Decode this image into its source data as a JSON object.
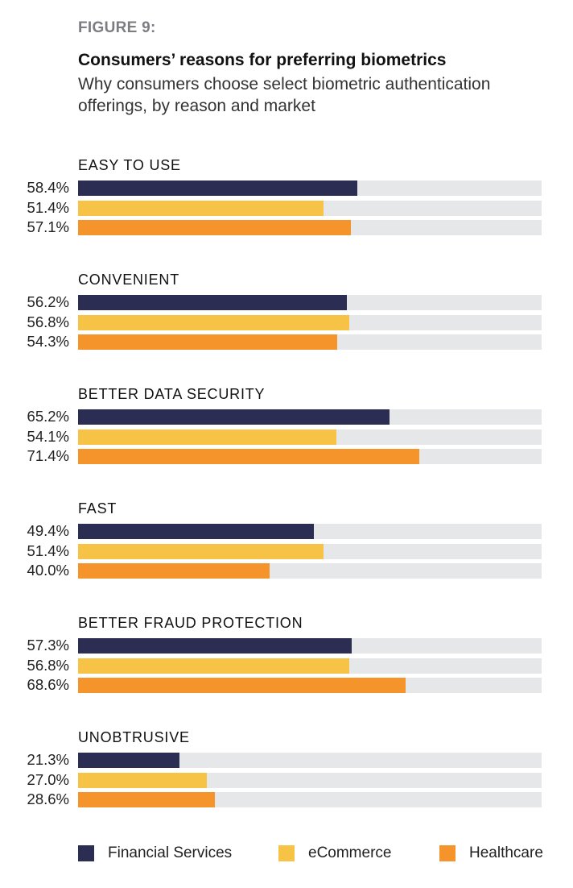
{
  "figure_label": "FIGURE 9:",
  "chart_data": {
    "type": "bar",
    "orientation": "horizontal",
    "title": "Consumers’ reasons for preferring biometrics",
    "subtitle": "Why consumers choose select biometric authentication offerings, by reason and market",
    "categories": [
      "EASY TO USE",
      "CONVENIENT",
      "BETTER DATA SECURITY",
      "FAST",
      "BETTER FRAUD PROTECTION",
      "UNOBTRUSIVE"
    ],
    "series": [
      {
        "name": "Financial Services",
        "color": "#2b2e52",
        "values": [
          58.4,
          56.2,
          65.2,
          49.4,
          57.3,
          21.3
        ],
        "labels": [
          "58.4%",
          "56.2%",
          "65.2%",
          "49.4%",
          "57.3%",
          "21.3%"
        ]
      },
      {
        "name": "eCommerce",
        "color": "#f6c346",
        "values": [
          51.4,
          56.8,
          54.1,
          51.4,
          56.8,
          27.0
        ],
        "labels": [
          "51.4%",
          "56.8%",
          "54.1%",
          "51.4%",
          "56.8%",
          "27.0%"
        ]
      },
      {
        "name": "Healthcare",
        "color": "#f4942b",
        "values": [
          57.1,
          54.3,
          71.4,
          40.0,
          68.6,
          28.6
        ],
        "labels": [
          "57.1%",
          "54.3%",
          "71.4%",
          "40.0%",
          "68.6%",
          "28.6%"
        ]
      }
    ],
    "xlim": [
      0,
      97
    ],
    "track_color": "#e6e7e8",
    "legend_position": "bottom",
    "grid": false
  }
}
